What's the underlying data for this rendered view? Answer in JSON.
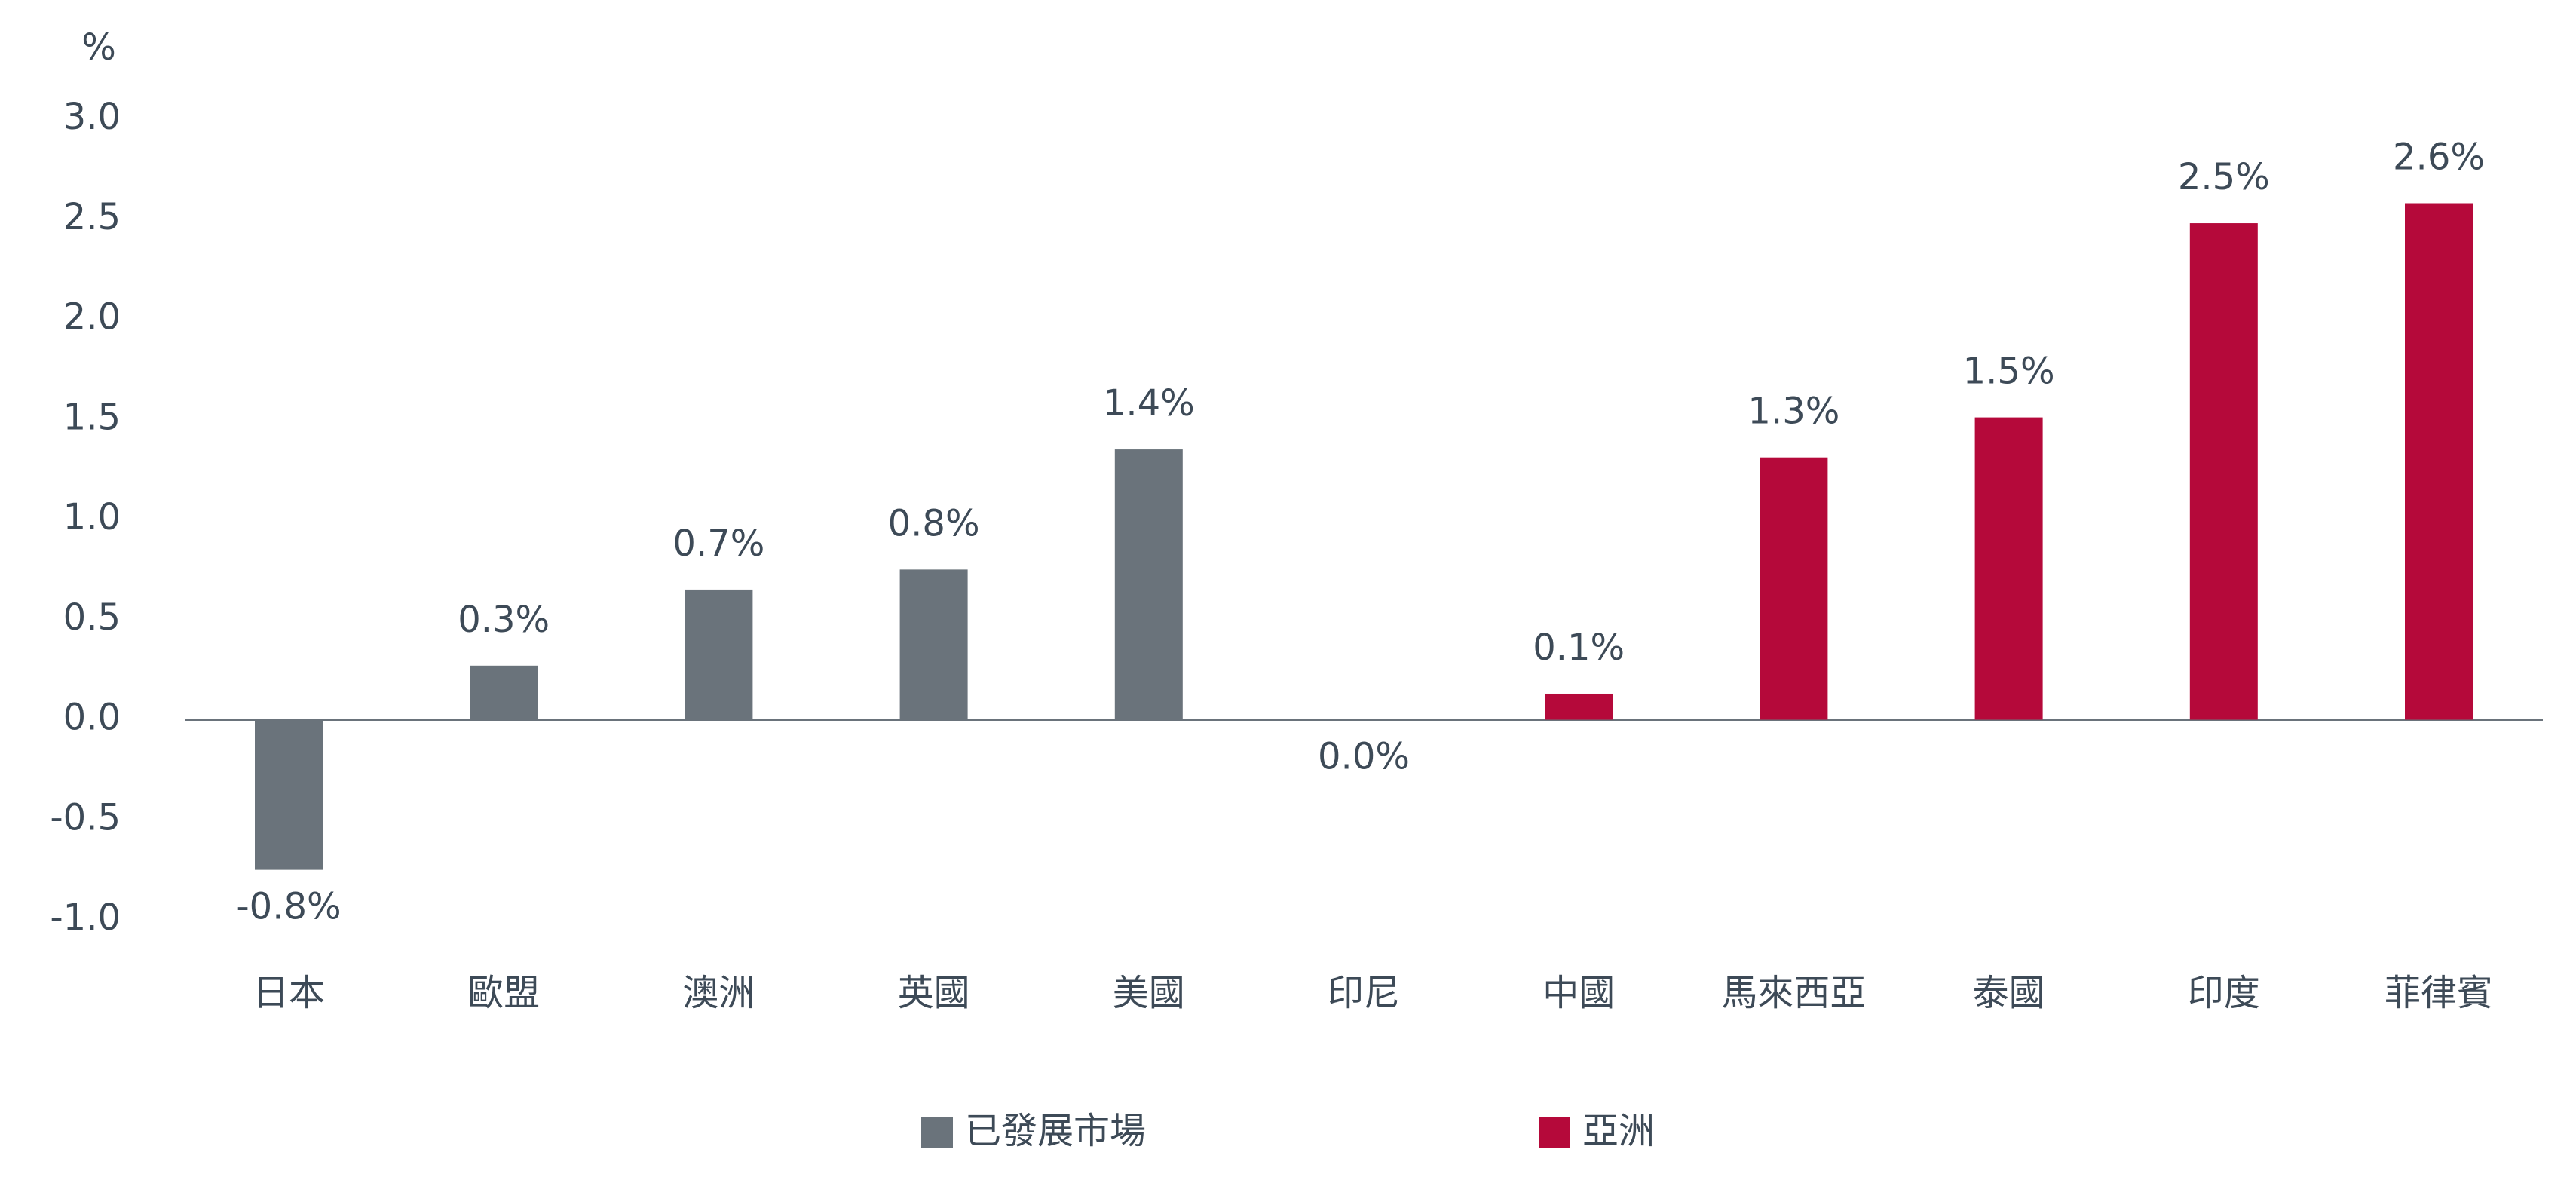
{
  "chart_data": {
    "type": "bar",
    "unit_label": "%",
    "categories": [
      "日本",
      "歐盟",
      "澳洲",
      "英國",
      "美國",
      "印尼",
      "中國",
      "馬來西亞",
      "泰國",
      "印度",
      "菲律賓"
    ],
    "series": [
      {
        "name": "已發展市場",
        "color": "#6a737b",
        "values": [
          -0.75,
          0.27,
          0.65,
          0.75,
          1.35,
          null,
          null,
          null,
          null,
          null,
          null
        ],
        "value_labels": [
          "-0.8%",
          "0.3%",
          "0.7%",
          "0.8%",
          "1.4%",
          null,
          null,
          null,
          null,
          null,
          null
        ]
      },
      {
        "name": "亞洲",
        "color": "#b5093a",
        "values": [
          null,
          null,
          null,
          null,
          null,
          0.0,
          0.13,
          1.31,
          1.51,
          2.48,
          2.58
        ],
        "value_labels": [
          null,
          null,
          null,
          null,
          null,
          "0.0%",
          "0.1%",
          "1.3%",
          "1.5%",
          "2.5%",
          "2.6%"
        ]
      }
    ],
    "ylim": [
      -1,
      3
    ],
    "yticks": [
      {
        "value": -1,
        "label": "-1.0"
      },
      -0.5,
      {
        "value": 0,
        "label": "0.0"
      },
      0.5,
      {
        "value": 1,
        "label": "1.0"
      },
      1.5,
      {
        "value": 2,
        "label": "2.0"
      },
      2.5,
      {
        "value": 3,
        "label": "3.0"
      }
    ],
    "grid": false
  }
}
